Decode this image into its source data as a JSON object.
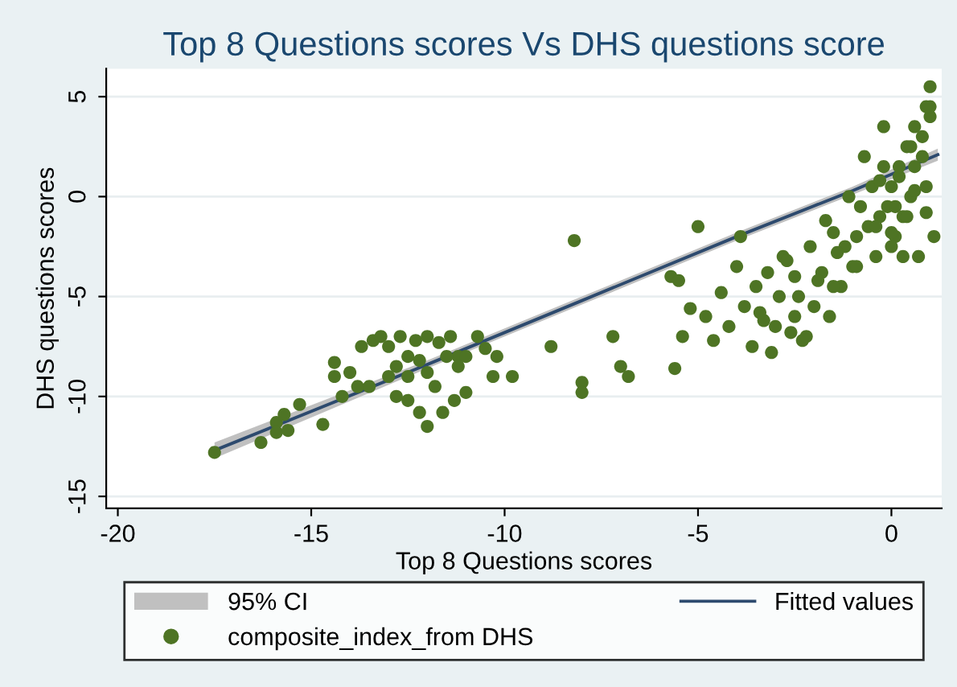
{
  "chart_data": {
    "type": "scatter",
    "title": "Top 8 Questions scores Vs DHS questions score",
    "xlabel": "Top 8 Questions scores",
    "ylabel": "DHS questions scores",
    "annotations": [
      "95% CI"
    ],
    "xlim": [
      -20.3,
      1.3
    ],
    "ylim": [
      -15.6,
      6.4
    ],
    "xticks": [
      -20,
      -15,
      -10,
      -5,
      0
    ],
    "yticks": [
      -15,
      -10,
      -5,
      0,
      5
    ],
    "grid": "y",
    "legend": "bottom",
    "series": [
      {
        "type": "line",
        "name": "Fitted values",
        "color": "#2d4a6e",
        "marker": "none",
        "x": [
          -17.5,
          -12,
          -8,
          -4,
          -1,
          1.2
        ],
        "values": [
          -12.7,
          -8.4,
          -5.2,
          -2.0,
          0.3,
          2.1
        ],
        "lower": [
          -13.1,
          -8.6,
          -5.4,
          -2.2,
          0.1,
          1.8
        ],
        "upper": [
          -12.3,
          -8.2,
          -5.0,
          -1.8,
          0.5,
          2.4
        ]
      },
      {
        "name": "composite_index_from DHS",
        "color": "#4e7424",
        "marker": "circle",
        "x": [
          -17.5,
          -16.3,
          -15.9,
          -15.9,
          -15.7,
          -15.6,
          -15.3,
          -14.7,
          -14.4,
          -14.4,
          -14.2,
          -14.0,
          -13.7,
          -13.8,
          -13.4,
          -13.2,
          -13.0,
          -12.7,
          -12.5,
          -12.3,
          -12.0,
          -11.7,
          -11.4,
          -11.2,
          -13.5,
          -13.0,
          -12.8,
          -12.5,
          -12.2,
          -12.0,
          -11.8,
          -11.5,
          -11.2,
          -11.0,
          -12.5,
          -12.2,
          -12.0,
          -11.6,
          -11.3,
          -12.8,
          -10.7,
          -10.5,
          -10.3,
          -10.2,
          -11.0,
          -9.8,
          -8.8,
          -8.0,
          -8.0,
          -7.2,
          -7.0,
          -6.8,
          -8.2,
          -5.6,
          -5.7,
          -5.0,
          -5.2,
          -5.5,
          -5.4,
          -4.8,
          -4.6,
          -4.4,
          -4.2,
          -4.0,
          -3.8,
          -3.6,
          -3.5,
          -3.3,
          -3.1,
          -2.9,
          -2.8,
          -2.6,
          -2.5,
          -2.3,
          -2.1,
          -2.0,
          -1.8,
          -1.6,
          -1.5,
          -1.3,
          -1.2,
          -1.0,
          -3.9,
          -3.4,
          -3.0,
          -2.7,
          -2.4,
          -2.2,
          -1.9,
          -1.7,
          -1.4,
          -1.1,
          -0.9,
          -0.8,
          -0.6,
          -0.5,
          -0.4,
          -0.3,
          -0.2,
          -0.1,
          0.0,
          0.1,
          0.2,
          0.3,
          0.4,
          0.5,
          0.6,
          0.7,
          0.8,
          0.9,
          1.0,
          -0.7,
          -0.4,
          -0.2,
          0.0,
          0.2,
          0.4,
          0.6,
          0.8,
          1.0,
          0.3,
          0.5,
          1.0,
          0.9,
          0.1,
          -0.3,
          0.0,
          0.6,
          0.9,
          1.1,
          -0.9,
          -1.5,
          -2.5,
          -3.2
        ],
        "values": [
          -12.8,
          -12.3,
          -11.3,
          -11.8,
          -10.9,
          -11.7,
          -10.4,
          -11.4,
          -9.0,
          -8.3,
          -10.0,
          -8.8,
          -7.5,
          -9.5,
          -7.2,
          -7.0,
          -7.5,
          -7.0,
          -9.0,
          -7.2,
          -7.0,
          -7.3,
          -7.0,
          -8.0,
          -9.5,
          -9.0,
          -8.5,
          -8.0,
          -8.2,
          -8.8,
          -9.5,
          -8.0,
          -8.5,
          -8.0,
          -10.2,
          -10.8,
          -11.5,
          -10.8,
          -10.2,
          -10.0,
          -7.0,
          -7.6,
          -9.0,
          -8.0,
          -9.8,
          -9.0,
          -7.5,
          -9.3,
          -9.8,
          -7.0,
          -8.5,
          -9.0,
          -2.2,
          -8.6,
          -4.0,
          -1.5,
          -5.6,
          -4.2,
          -7.0,
          -6.0,
          -7.2,
          -4.8,
          -6.5,
          -3.5,
          -5.5,
          -7.5,
          -4.5,
          -6.2,
          -7.8,
          -5.0,
          -3.0,
          -6.8,
          -4.0,
          -7.2,
          -2.5,
          -5.5,
          -3.8,
          -6.0,
          -1.8,
          -4.5,
          -2.5,
          -3.5,
          -2.0,
          -5.8,
          -6.5,
          -3.2,
          -5.0,
          -7.0,
          -4.2,
          -1.2,
          -2.8,
          0.0,
          -2.0,
          -0.5,
          -1.5,
          0.5,
          -3.0,
          -1.0,
          1.5,
          -0.5,
          0.5,
          -2.0,
          1.0,
          -1.0,
          2.5,
          0.0,
          1.5,
          -3.0,
          3.0,
          0.5,
          4.0,
          2.0,
          -1.5,
          3.5,
          -2.5,
          1.5,
          -1.0,
          3.5,
          2.0,
          4.5,
          -3.0,
          2.5,
          5.5,
          4.5,
          -0.5,
          0.8,
          -1.8,
          0.3,
          -0.8,
          -2.0,
          -3.5,
          -4.5,
          -6.0,
          -3.8
        ]
      }
    ]
  }
}
